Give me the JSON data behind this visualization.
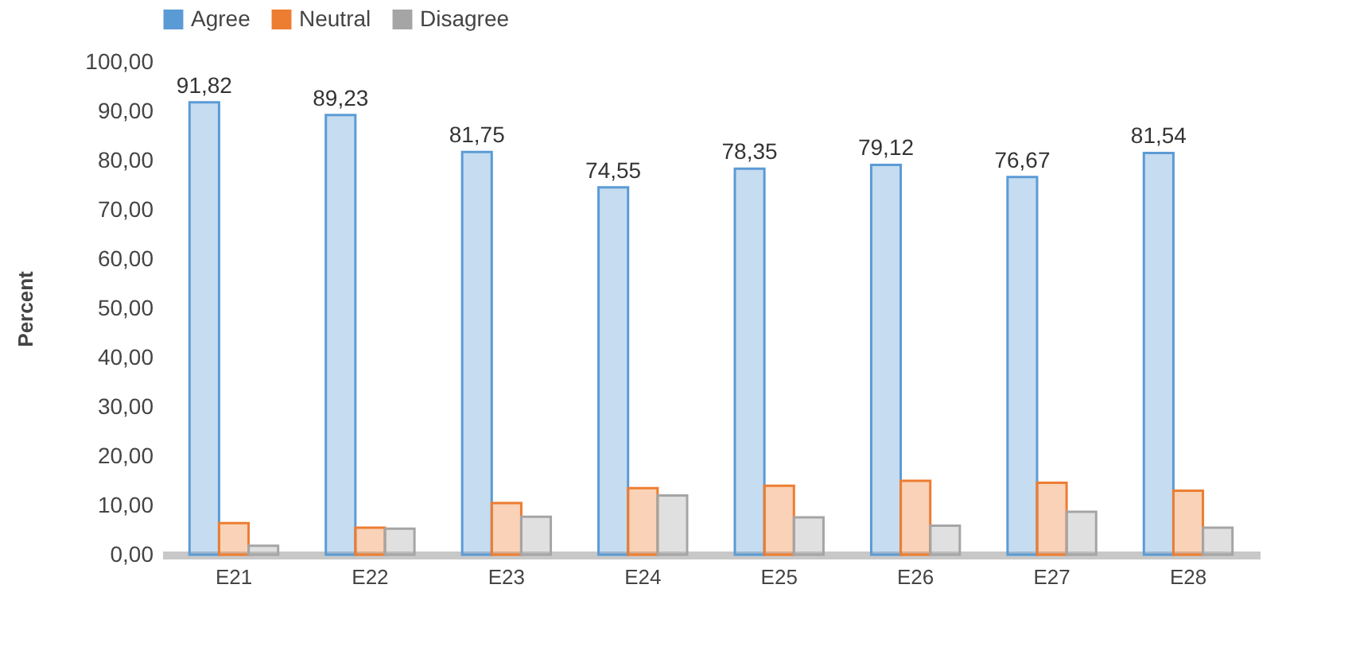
{
  "chart_data": {
    "type": "bar",
    "ylabel": "Percent",
    "categories": [
      "E21",
      "E22",
      "E23",
      "E24",
      "E25",
      "E26",
      "E27",
      "E28"
    ],
    "series": [
      {
        "name": "Agree",
        "color": "#5b9bd5",
        "values": [
          91.82,
          89.23,
          81.75,
          74.55,
          78.35,
          79.12,
          76.67,
          81.54
        ],
        "value_labels": [
          "91,82",
          "89,23",
          "81,75",
          "74,55",
          "78,35",
          "79,12",
          "76,67",
          "81,54"
        ]
      },
      {
        "name": "Neutral",
        "color": "#ed7d31",
        "values": [
          6.4,
          5.5,
          10.5,
          13.5,
          14.0,
          15.0,
          14.6,
          13.0
        ]
      },
      {
        "name": "Disagree",
        "color": "#a5a5a5",
        "values": [
          1.8,
          5.3,
          7.7,
          12.0,
          7.6,
          5.9,
          8.7,
          5.5
        ]
      }
    ],
    "ylim": [
      0,
      100
    ],
    "yticks": [
      {
        "value": 0,
        "label": "0,00"
      },
      {
        "value": 10,
        "label": "10,00"
      },
      {
        "value": 20,
        "label": "20,00"
      },
      {
        "value": 30,
        "label": "30,00"
      },
      {
        "value": 40,
        "label": "40,00"
      },
      {
        "value": 50,
        "label": "50,00"
      },
      {
        "value": 60,
        "label": "60,00"
      },
      {
        "value": 70,
        "label": "70,00"
      },
      {
        "value": 80,
        "label": "80,00"
      },
      {
        "value": 90,
        "label": "90,00"
      },
      {
        "value": 100,
        "label": "100,00"
      }
    ],
    "grid": false,
    "legend": "top"
  }
}
